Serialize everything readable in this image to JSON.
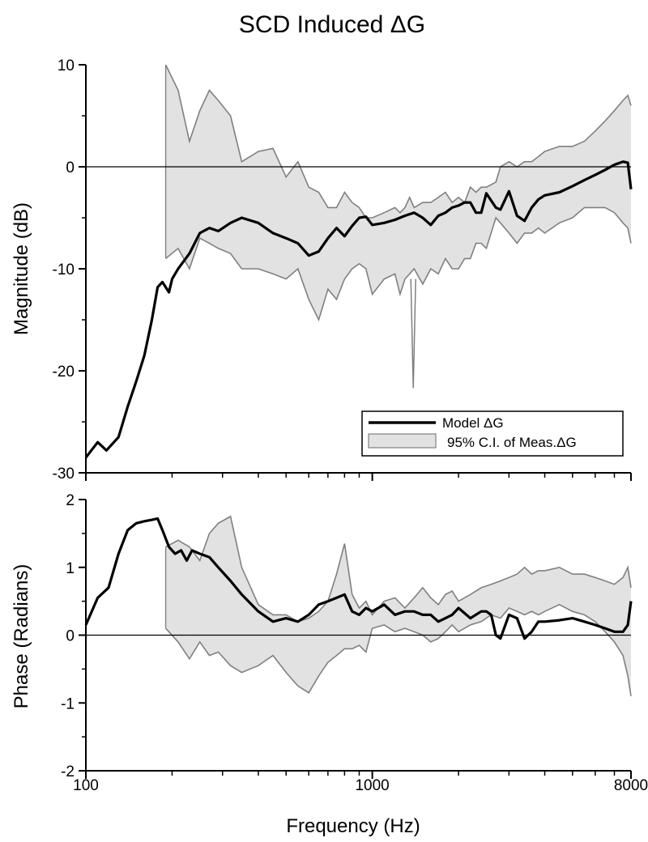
{
  "chart_data": {
    "title": "SCD Induced ΔG",
    "type": "line",
    "xlabel": "Frequency (Hz)",
    "xscale": "log",
    "xlim": [
      100,
      8000
    ],
    "x_tick_labels": [
      "100",
      "1000",
      "8000"
    ],
    "x_tick_values": [
      100,
      1000,
      8000
    ],
    "legend": {
      "placement": "lower-right of magnitude panel",
      "entries": [
        "Model ΔG",
        "95% C.I. of Meas.ΔG"
      ]
    },
    "colors": {
      "model": "#000000",
      "ci_fill": "#e2e2e2",
      "ci_edge": "#808080"
    },
    "panels": [
      {
        "ylabel": "Magnitude (dB)",
        "ylim": [
          -30,
          10
        ],
        "y_tick_labels": [
          "10",
          "0",
          "-10",
          "-20",
          "-30"
        ],
        "y_tick_values": [
          10,
          0,
          -10,
          -20,
          -30
        ],
        "reference_line": 0,
        "series": [
          {
            "name": "Model ΔG",
            "x": [
              100,
              110,
              118,
              130,
              140,
              150,
              160,
              170,
              178,
              185,
              195,
              200,
              210,
              230,
              250,
              270,
              290,
              320,
              350,
              400,
              450,
              500,
              550,
              600,
              650,
              700,
              750,
              800,
              850,
              900,
              950,
              1000,
              1100,
              1200,
              1300,
              1400,
              1500,
              1600,
              1700,
              1800,
              1900,
              2000,
              2100,
              2200,
              2300,
              2400,
              2500,
              2700,
              2800,
              3000,
              3200,
              3400,
              3600,
              3800,
              4000,
              4500,
              5000,
              5500,
              6000,
              6500,
              7000,
              7500,
              7800,
              8000
            ],
            "y": [
              -28.5,
              -27,
              -27.8,
              -26.5,
              -23.5,
              -21,
              -18.5,
              -15,
              -11.8,
              -11.3,
              -12.3,
              -11,
              -10,
              -8.5,
              -6.5,
              -6,
              -6.3,
              -5.5,
              -5,
              -5.5,
              -6.5,
              -7,
              -7.5,
              -8.7,
              -8.3,
              -7,
              -6,
              -6.8,
              -5.8,
              -5,
              -4.9,
              -5.7,
              -5.5,
              -5.2,
              -4.8,
              -4.5,
              -5,
              -5.7,
              -4.8,
              -4.5,
              -4,
              -3.8,
              -3.5,
              -3.5,
              -4.5,
              -4.5,
              -2.6,
              -4,
              -4.2,
              -2.4,
              -4.8,
              -5.3,
              -4,
              -3.2,
              -2.8,
              -2.5,
              -1.9,
              -1.3,
              -0.8,
              -0.3,
              0.2,
              0.5,
              0.4,
              -2.2
            ]
          },
          {
            "name": "95% C.I. of Meas.ΔG",
            "kind": "band",
            "x": [
              190,
              210,
              230,
              250,
              270,
              290,
              320,
              350,
              400,
              450,
              500,
              550,
              600,
              650,
              700,
              750,
              800,
              850,
              900,
              950,
              1000,
              1100,
              1200,
              1250,
              1300,
              1350,
              1400,
              1500,
              1600,
              1700,
              1800,
              1900,
              2000,
              2100,
              2200,
              2300,
              2400,
              2500,
              2700,
              2800,
              3000,
              3200,
              3400,
              3600,
              3800,
              4000,
              4500,
              5000,
              5500,
              6000,
              6500,
              7000,
              7500,
              7800,
              8000
            ],
            "upper": [
              10,
              7.5,
              2.5,
              5.5,
              7.5,
              6.5,
              5,
              0.5,
              1.5,
              1.8,
              -1,
              0.5,
              -2,
              -2.5,
              -4,
              -4,
              -2.5,
              -3.5,
              -4,
              -5,
              -5,
              -4.5,
              -4,
              -4.5,
              -4,
              -3,
              -4,
              -3.5,
              -3.5,
              -3,
              -2.5,
              -3.5,
              -3,
              -3.5,
              -2,
              -2.5,
              -2,
              -2,
              -1.5,
              0,
              0.5,
              0,
              0.5,
              0.5,
              1,
              1.5,
              2,
              2,
              2.5,
              3.5,
              4.5,
              5.5,
              6.5,
              7,
              6
            ],
            "lower": [
              -9,
              -8,
              -10,
              -7,
              -7.5,
              -8,
              -8.5,
              -10,
              -10,
              -10.5,
              -11,
              -10,
              -13,
              -15,
              -12,
              -13,
              -11,
              -10,
              -9.5,
              -10,
              -12.5,
              -11,
              -10.5,
              -12.5,
              -11,
              -10.5,
              -10,
              -11.5,
              -10,
              -10.5,
              -9,
              -10,
              -10,
              -9,
              -9,
              -7.5,
              -7.5,
              -8,
              -5,
              -5.5,
              -6.5,
              -7.5,
              -6.5,
              -6.5,
              -6,
              -6.5,
              -5.5,
              -5,
              -4,
              -4,
              -4,
              -4.5,
              -5.5,
              -6,
              -7.5
            ]
          }
        ],
        "annotations": [
          {
            "kind": "notch",
            "x": 1390,
            "y": -21.7
          }
        ]
      },
      {
        "ylabel": "Phase (Radians)",
        "ylim": [
          -2,
          2
        ],
        "y_tick_labels": [
          "2",
          "1",
          "0",
          "-1",
          "-2"
        ],
        "y_tick_values": [
          2,
          1,
          0,
          -1,
          -2
        ],
        "reference_line": 0,
        "series": [
          {
            "name": "Model ΔG",
            "x": [
              100,
              110,
              120,
              130,
              140,
              150,
              160,
              170,
              178,
              185,
              195,
              205,
              215,
              225,
              235,
              250,
              270,
              290,
              320,
              350,
              400,
              450,
              500,
              550,
              600,
              650,
              700,
              750,
              800,
              850,
              900,
              950,
              1000,
              1100,
              1200,
              1300,
              1400,
              1500,
              1600,
              1700,
              1800,
              1900,
              2000,
              2200,
              2400,
              2500,
              2600,
              2700,
              2800,
              3000,
              3200,
              3400,
              3600,
              3800,
              4000,
              4500,
              5000,
              5500,
              6000,
              6500,
              7000,
              7500,
              7800,
              8000
            ],
            "y": [
              0.15,
              0.55,
              0.7,
              1.2,
              1.55,
              1.65,
              1.68,
              1.7,
              1.72,
              1.55,
              1.3,
              1.2,
              1.25,
              1.1,
              1.25,
              1.2,
              1.15,
              1,
              0.8,
              0.6,
              0.35,
              0.2,
              0.25,
              0.2,
              0.3,
              0.45,
              0.5,
              0.55,
              0.6,
              0.35,
              0.3,
              0.4,
              0.35,
              0.45,
              0.3,
              0.35,
              0.35,
              0.3,
              0.3,
              0.2,
              0.25,
              0.3,
              0.4,
              0.25,
              0.35,
              0.35,
              0.3,
              0.0,
              -0.05,
              0.3,
              0.25,
              -0.05,
              0.05,
              0.2,
              0.2,
              0.22,
              0.25,
              0.2,
              0.15,
              0.1,
              0.05,
              0.05,
              0.15,
              0.5
            ]
          },
          {
            "name": "95% C.I. of Meas.ΔG",
            "kind": "band",
            "x": [
              190,
              210,
              230,
              250,
              270,
              290,
              320,
              350,
              400,
              450,
              500,
              550,
              600,
              650,
              700,
              750,
              800,
              850,
              900,
              950,
              1000,
              1100,
              1200,
              1300,
              1400,
              1500,
              1600,
              1700,
              1800,
              1900,
              2000,
              2200,
              2400,
              2600,
              2800,
              3000,
              3200,
              3400,
              3600,
              3800,
              4000,
              4500,
              5000,
              5500,
              6000,
              6500,
              7000,
              7500,
              7800,
              8000
            ],
            "upper": [
              1.3,
              1.4,
              1.3,
              1.1,
              1.5,
              1.65,
              1.75,
              1.0,
              0.45,
              0.3,
              0.3,
              0.2,
              0.25,
              0.35,
              0.5,
              0.9,
              1.35,
              0.6,
              0.4,
              0.5,
              0.3,
              0.5,
              0.55,
              0.4,
              0.55,
              0.7,
              0.55,
              0.45,
              0.6,
              0.65,
              0.5,
              0.6,
              0.7,
              0.75,
              0.8,
              0.85,
              0.9,
              1.0,
              0.9,
              0.95,
              0.95,
              1.0,
              0.9,
              0.9,
              0.85,
              0.8,
              0.75,
              0.85,
              1.0,
              0.7
            ],
            "lower": [
              0.1,
              -0.1,
              -0.35,
              -0.1,
              -0.3,
              -0.25,
              -0.45,
              -0.55,
              -0.45,
              -0.3,
              -0.55,
              -0.75,
              -0.85,
              -0.6,
              -0.4,
              -0.3,
              -0.2,
              -0.2,
              -0.15,
              -0.25,
              0.1,
              0.15,
              0.05,
              0.1,
              0.05,
              0.0,
              -0.1,
              -0.05,
              0.05,
              0.15,
              0.05,
              0.15,
              0.2,
              0.3,
              0.25,
              0.4,
              0.35,
              0.3,
              0.35,
              0.3,
              0.35,
              0.45,
              0.35,
              0.3,
              0.2,
              0.05,
              -0.1,
              -0.3,
              -0.6,
              -0.9
            ]
          }
        ]
      }
    ]
  }
}
